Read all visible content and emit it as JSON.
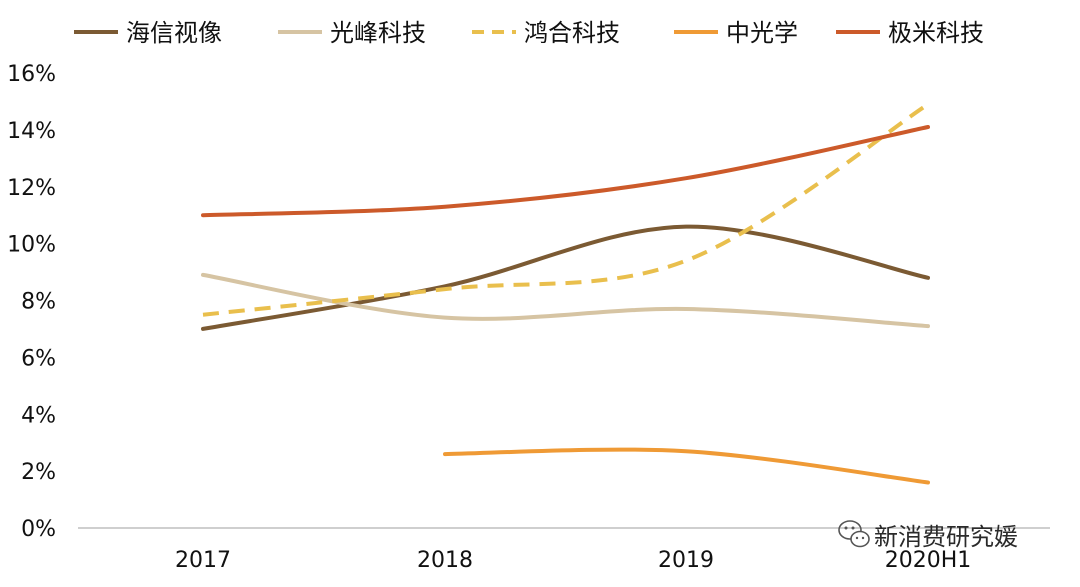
{
  "chart_data": {
    "type": "line",
    "title": "",
    "xlabel": "",
    "ylabel": "",
    "categories": [
      "2017",
      "2018",
      "2019",
      "2020H1"
    ],
    "ylim": [
      0,
      16
    ],
    "yticks": [
      0,
      2,
      4,
      6,
      8,
      10,
      12,
      14,
      16
    ],
    "ytick_labels": [
      "0%",
      "2%",
      "4%",
      "6%",
      "8%",
      "10%",
      "12%",
      "14%",
      "16%"
    ],
    "y_unit": "%",
    "grid": false,
    "legend_position": "top",
    "series": [
      {
        "name": "海信视像",
        "values": [
          7.0,
          8.5,
          10.6,
          8.8
        ],
        "color": "#7b5a33",
        "dashed": false
      },
      {
        "name": "光峰科技",
        "values": [
          8.9,
          7.4,
          7.7,
          7.1
        ],
        "color": "#d6c4a3",
        "dashed": false
      },
      {
        "name": "鸿合科技",
        "values": [
          7.5,
          8.4,
          9.4,
          14.9
        ],
        "color": "#e9bf4d",
        "dashed": true
      },
      {
        "name": "中光学",
        "values": [
          null,
          2.6,
          2.7,
          1.6
        ],
        "color": "#ef9a35",
        "dashed": false
      },
      {
        "name": "极米科技",
        "values": [
          11.0,
          11.3,
          12.3,
          14.1
        ],
        "color": "#cc5a2a",
        "dashed": false
      }
    ]
  },
  "watermark": {
    "text": "新消费研究媛",
    "icon": "wechat-icon"
  }
}
